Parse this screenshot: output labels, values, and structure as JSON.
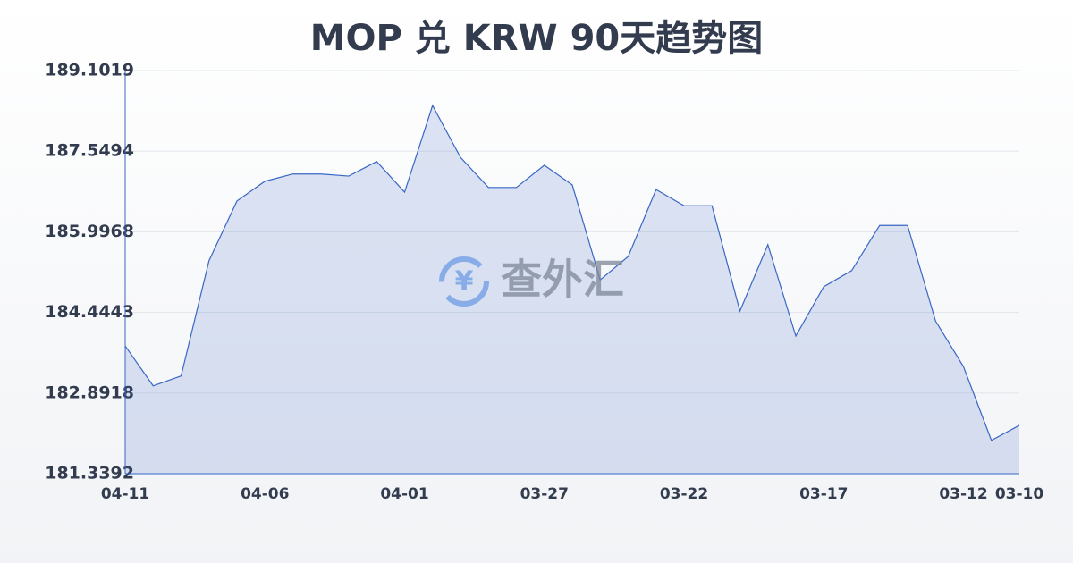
{
  "chart_data": {
    "type": "area",
    "title": "MOP 兑 KRW 90天趋势图",
    "watermark": "查外汇",
    "categories": [
      "04-11",
      null,
      null,
      null,
      null,
      "04-06",
      null,
      null,
      null,
      null,
      "04-01",
      null,
      null,
      null,
      null,
      "03-27",
      null,
      null,
      null,
      null,
      "03-22",
      null,
      null,
      null,
      null,
      "03-17",
      null,
      null,
      null,
      null,
      "03-12",
      null,
      "03-10"
    ],
    "values": [
      183.8,
      183.03,
      183.22,
      185.44,
      186.59,
      186.97,
      187.11,
      187.11,
      187.07,
      187.35,
      186.76,
      188.43,
      187.43,
      186.85,
      186.85,
      187.28,
      186.9,
      185.07,
      185.52,
      186.81,
      186.5,
      186.5,
      184.47,
      185.75,
      183.99,
      184.94,
      185.25,
      186.12,
      186.12,
      184.28,
      183.4,
      181.98,
      182.27
    ],
    "color": "#3a66c4",
    "ylim": [
      181.3392,
      189.1019
    ],
    "yticks": [
      181.3392,
      182.8918,
      184.4443,
      185.9968,
      187.5494,
      189.1019
    ],
    "grid": true
  }
}
